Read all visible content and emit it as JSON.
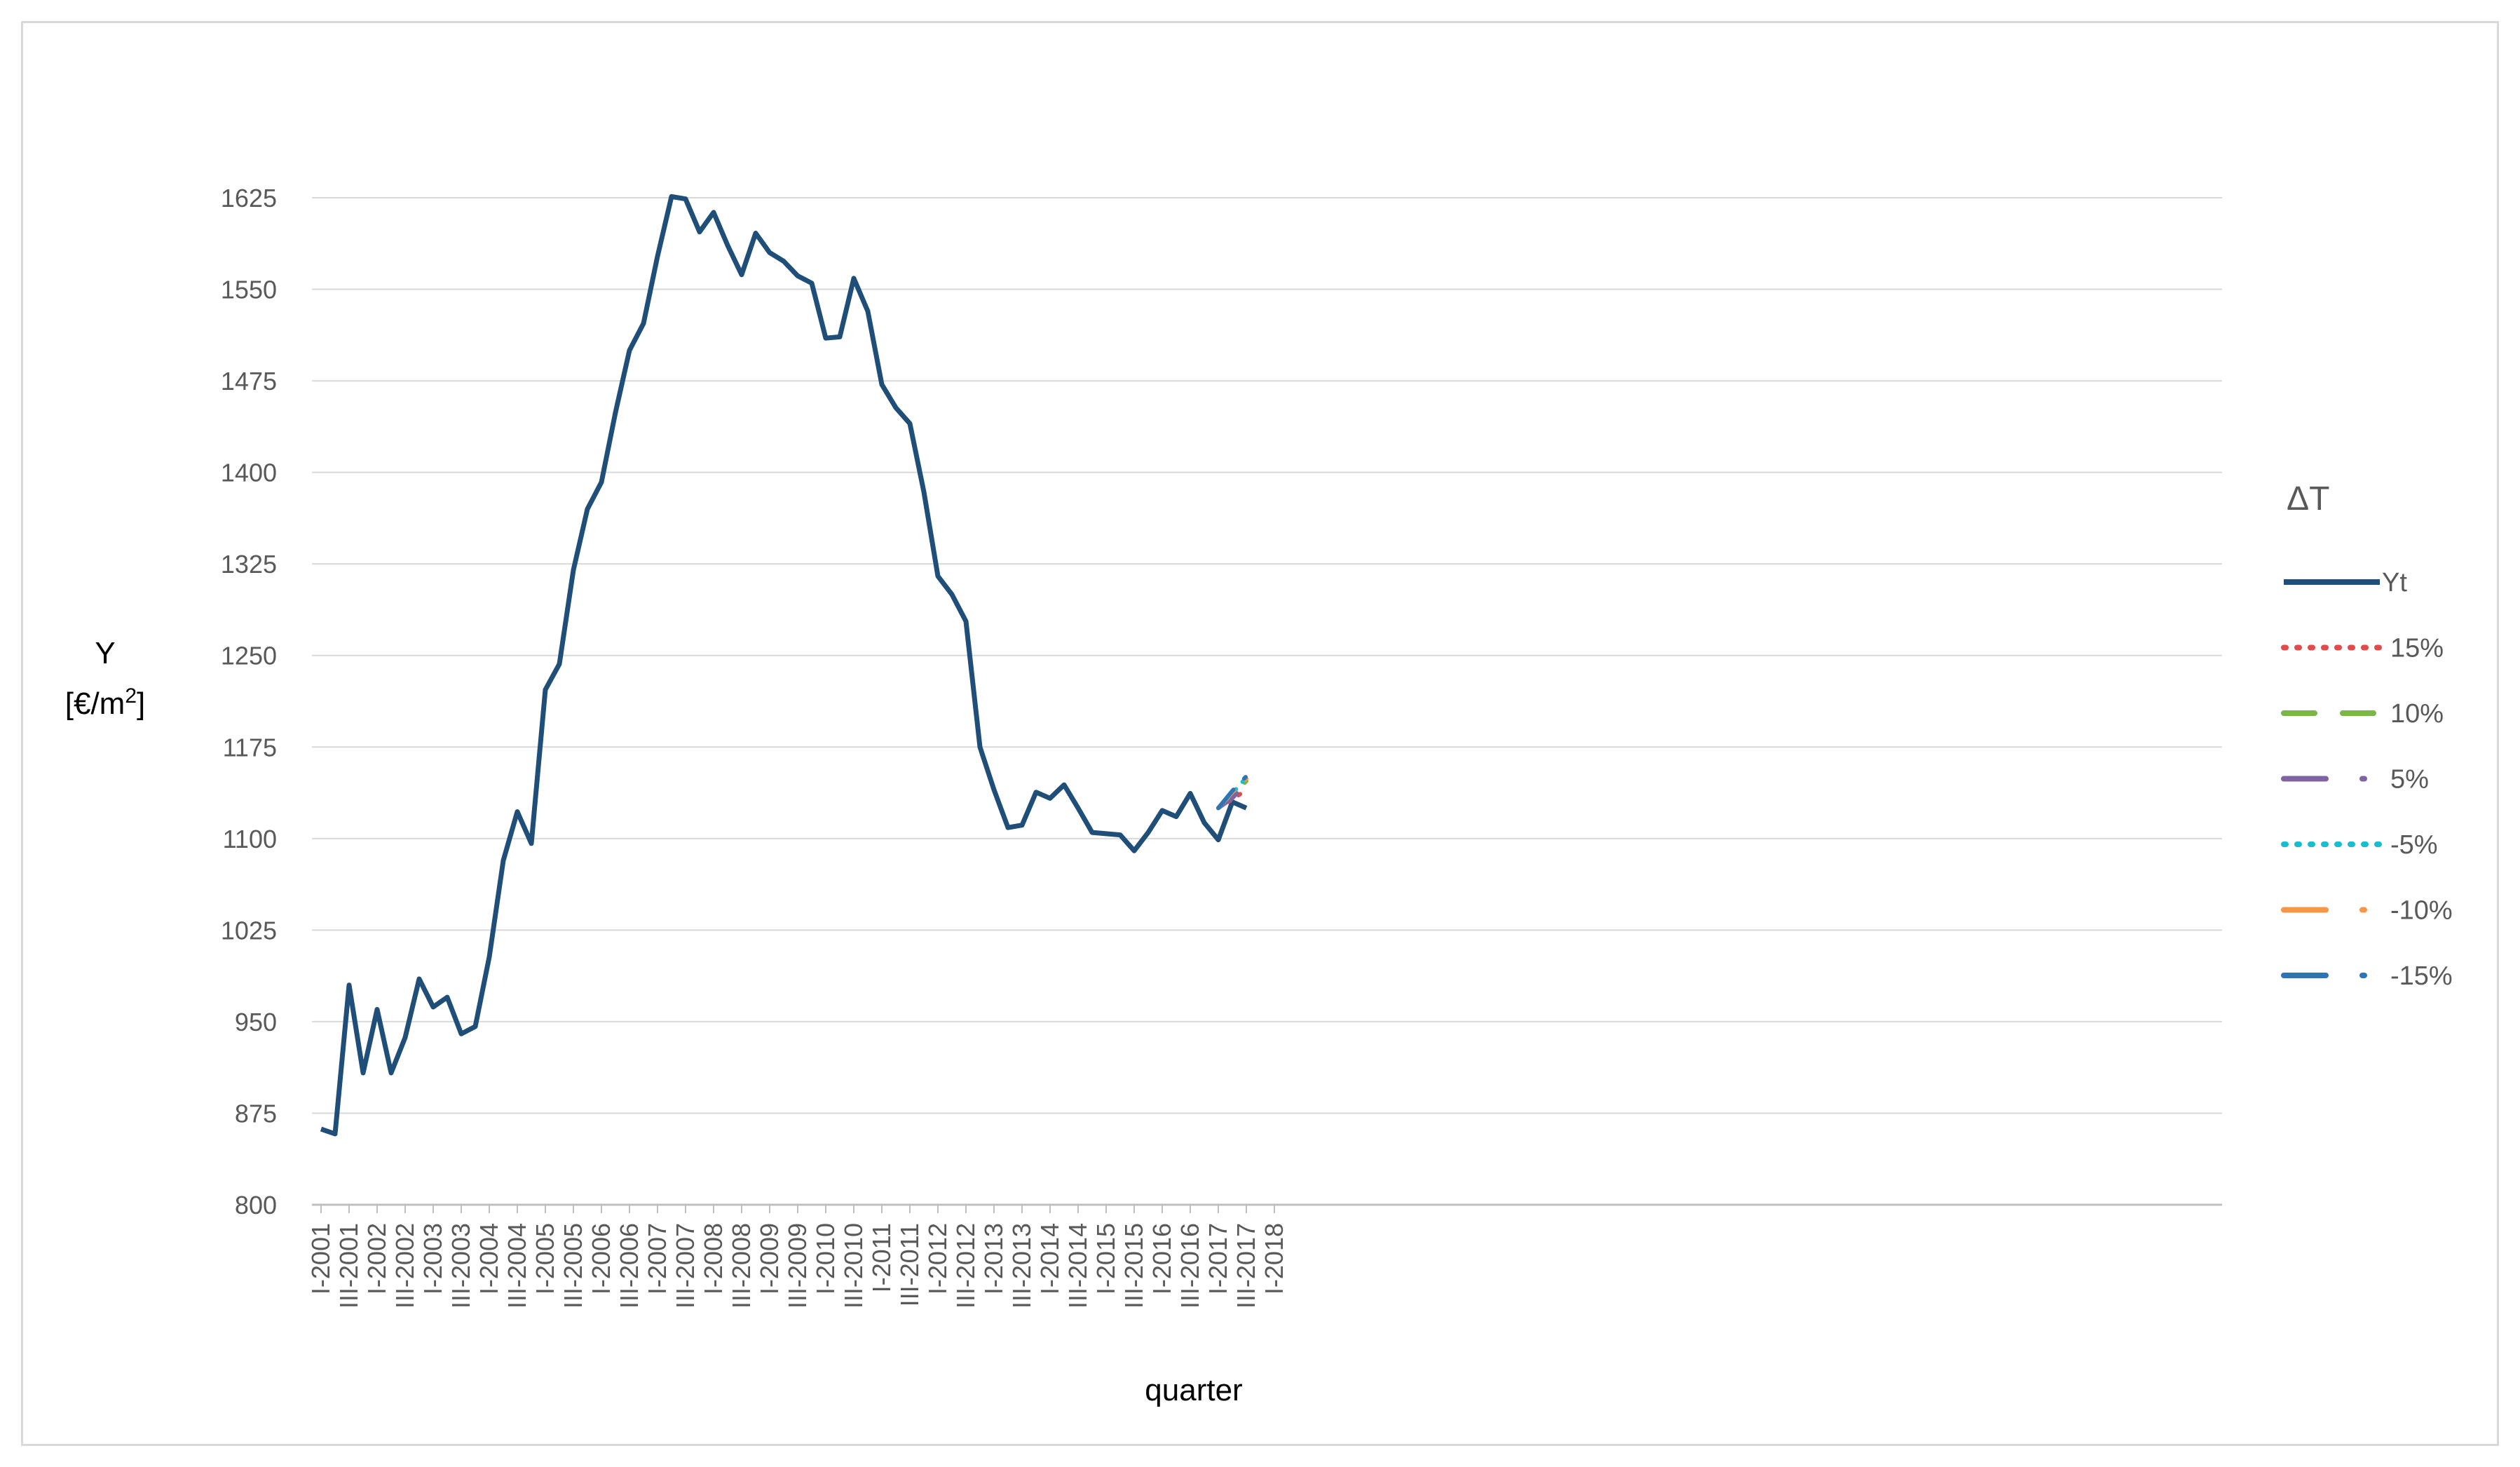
{
  "chart_data": {
    "type": "line",
    "xlabel": "quarter",
    "ylabel": "Y",
    "ylabel_unit_prefix": "[€/m",
    "ylabel_unit_sup": "2",
    "ylabel_unit_suffix": "]",
    "ylim": [
      800,
      1700
    ],
    "yticks": [
      800,
      875,
      950,
      1025,
      1100,
      1175,
      1250,
      1325,
      1400,
      1475,
      1550,
      1625
    ],
    "grid": "horizontal",
    "legend_placement": "right",
    "legend_title": "ΔT",
    "x_tick_labels": [
      "I-2001",
      "III-2001",
      "I-2002",
      "III-2002",
      "I-2003",
      "III-2003",
      "I-2004",
      "III-2004",
      "I-2005",
      "III-2005",
      "I-2006",
      "III-2006",
      "I-2007",
      "III-2007",
      "I-2008",
      "III-2008",
      "I-2009",
      "III-2009",
      "I-2010",
      "III-2010",
      "I-2011",
      "III-2011",
      "I-2012",
      "III-2012",
      "I-2013",
      "III-2013",
      "I-2014",
      "III-2014",
      "I-2015",
      "III-2015",
      "I-2016",
      "III-2016",
      "I-2017",
      "III-2017",
      "I-2018"
    ],
    "series": [
      {
        "name": "Yt",
        "color": "#1f4e79",
        "dash": "solid",
        "values": [
          862,
          858,
          980,
          908,
          960,
          908,
          937,
          985,
          962,
          970,
          940,
          946,
          1003,
          1082,
          1122,
          1096,
          1222,
          1243,
          1320,
          1370,
          1392,
          1449,
          1500,
          1522,
          1577,
          1626,
          1624,
          1597,
          1613,
          1586,
          1562,
          1596,
          1580,
          1573,
          1561,
          1555,
          1510,
          1511,
          1559,
          1532,
          1472,
          1453,
          1440,
          1384,
          1315,
          1300,
          1278,
          1175,
          1140,
          1109,
          1111,
          1138,
          1133,
          1144,
          1125,
          1105,
          1104,
          1103,
          1090,
          1105,
          1123,
          1118,
          1137,
          1113,
          1099,
          1130,
          1125
        ]
      },
      {
        "name": "15%",
        "color": "#e04b4b",
        "dash": "dot",
        "values": [
          1125,
          1132,
          1140
        ]
      },
      {
        "name": "10%",
        "color": "#7ab648",
        "dash": "dash",
        "values": [
          1125,
          1136,
          1147
        ]
      },
      {
        "name": "5%",
        "color": "#8064a2",
        "dash": "dashdot",
        "values": [
          1125,
          1133,
          1146
        ]
      },
      {
        "name": "-5%",
        "color": "#17becf",
        "dash": "dot",
        "values": [
          1125,
          1137,
          1150
        ]
      },
      {
        "name": "-10%",
        "color": "#f79646",
        "dash": "dashdot",
        "values": [
          1125,
          1138,
          1149
        ]
      },
      {
        "name": "-15%",
        "color": "#2e75b6",
        "dash": "dashdot",
        "values": [
          1125,
          1139,
          1151
        ]
      }
    ]
  }
}
